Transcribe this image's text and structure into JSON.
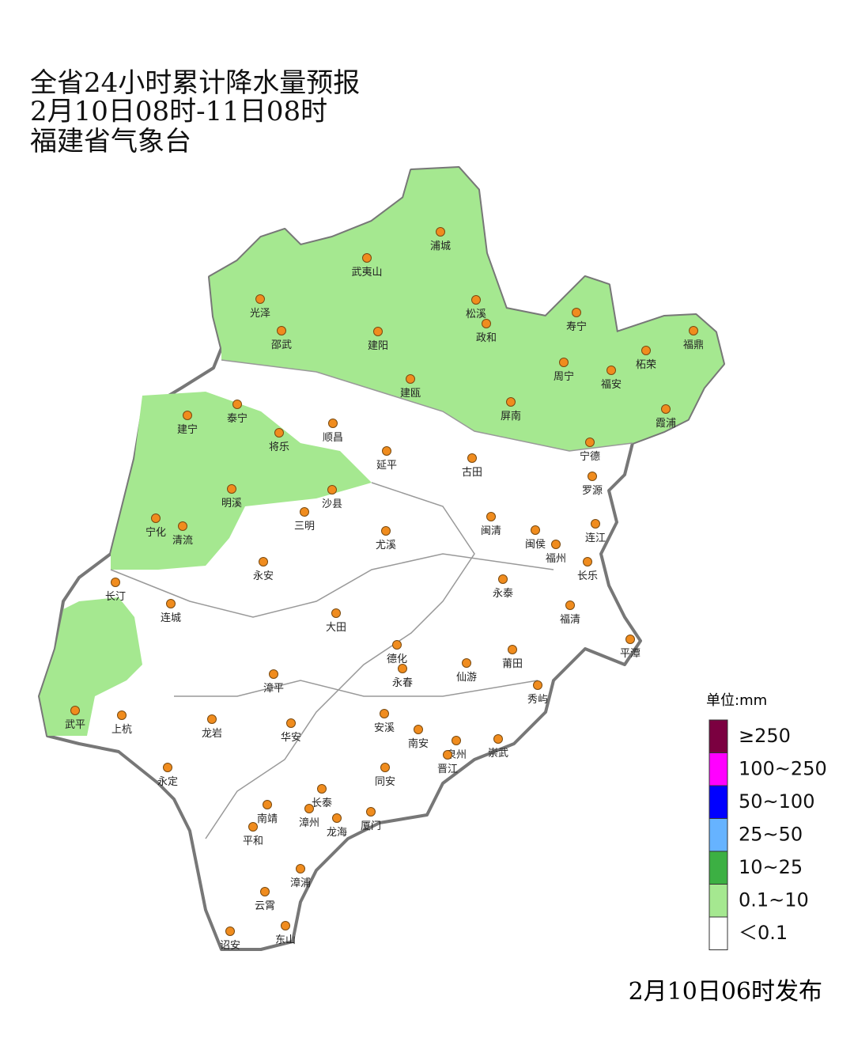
{
  "header": {
    "title": "全省24小时累计降水量预报",
    "period": "2月10日08时-11日08时",
    "issuer": "福建省气象台"
  },
  "cities": [
    "浦城",
    "武夷山",
    "光泽",
    "邵武",
    "建阳",
    "松溪",
    "政和",
    "寿宁",
    "福鼎",
    "柘荣",
    "周宁",
    "福安",
    "建瓯",
    "霞浦",
    "屏南",
    "宁德",
    "建宁",
    "泰宁",
    "将乐",
    "顺昌",
    "延平",
    "古田",
    "罗源",
    "明溪",
    "沙县",
    "三明",
    "宁化",
    "清流",
    "闽清",
    "闽侯",
    "福州",
    "连江",
    "尤溪",
    "永安",
    "长乐",
    "永泰",
    "长汀",
    "连城",
    "大田",
    "福清",
    "平潭",
    "德化",
    "莆田",
    "仙游",
    "漳平",
    "永春",
    "秀屿",
    "武平",
    "上杭",
    "龙岩",
    "华安",
    "安溪",
    "南安",
    "泉州",
    "崇武",
    "晋江",
    "永定",
    "同安",
    "长泰",
    "南靖",
    "漳州",
    "龙海",
    "厦门",
    "平和",
    "漳浦",
    "云霄",
    "诏安",
    "东山"
  ],
  "legend": {
    "unit": "单位:mm",
    "items": [
      {
        "label": "≥250",
        "color": "#7b0040"
      },
      {
        "label": "100~250",
        "color": "#ff00ff"
      },
      {
        "label": "50~100",
        "color": "#0000ff"
      },
      {
        "label": "25~50",
        "color": "#66b3ff"
      },
      {
        "label": "10~25",
        "color": "#3cb043"
      },
      {
        "label": "0.1~10",
        "color": "#a5e890"
      },
      {
        "label": "＜0.1",
        "color": "#ffffff"
      }
    ]
  },
  "footer": "2月10日06时发布"
}
